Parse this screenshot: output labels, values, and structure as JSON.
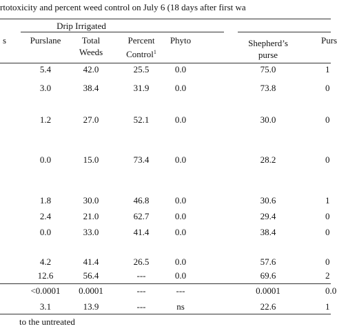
{
  "title": "rtotoxicity and percent weed control on July 6 (18 days after first wa",
  "group_header": "Drip Irrigated",
  "columns": [
    [
      "s"
    ],
    [
      "Purslane"
    ],
    [
      "Total",
      "Weeds"
    ],
    [
      "Percent",
      "Control"
    ],
    [
      "Phyto"
    ],
    [
      "Shepherd’s",
      "purse"
    ],
    [
      "Purs"
    ]
  ],
  "footnote_mark": "1",
  "rows": [
    [
      "5.4",
      "42.0",
      "25.5",
      "0.0",
      "75.0",
      "1"
    ],
    [
      "3.0",
      "38.4",
      "31.9",
      "0.0",
      "73.8",
      "0"
    ],
    [
      "1.2",
      "27.0",
      "52.1",
      "0.0",
      "30.0",
      "0"
    ],
    [
      "0.0",
      "15.0",
      "73.4",
      "0.0",
      "28.2",
      "0"
    ],
    [
      "1.8",
      "30.0",
      "46.8",
      "0.0",
      "30.6",
      "1"
    ],
    [
      "2.4",
      "21.0",
      "62.7",
      "0.0",
      "29.4",
      "0"
    ],
    [
      "0.0",
      "33.0",
      "41.4",
      "0.0",
      "38.4",
      "0"
    ],
    [
      "4.2",
      "41.4",
      "26.5",
      "0.0",
      "57.6",
      "0"
    ],
    [
      "12.6",
      "56.4",
      "---",
      "0.0",
      "69.6",
      "2"
    ],
    [
      "<0.0001",
      "0.0001",
      "---",
      "---",
      "0.0001",
      "0.0"
    ],
    [
      "3.1",
      "13.9",
      "---",
      "ns",
      "22.6",
      "1"
    ]
  ],
  "footnote": "to the untreated"
}
